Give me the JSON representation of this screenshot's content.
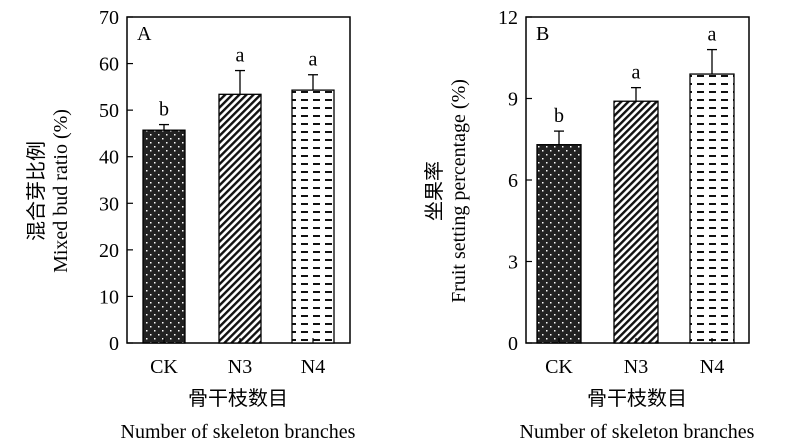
{
  "chart_data": [
    {
      "type": "bar",
      "panel_label": "A",
      "categories": [
        "CK",
        "N3",
        "N4"
      ],
      "values": [
        45.7,
        53.4,
        54.3
      ],
      "errors": [
        1.2,
        5.1,
        3.3
      ],
      "significance": [
        "b",
        "a",
        "a"
      ],
      "ylabel_cn": "混合芽比例",
      "ylabel_en": "Mixed bud ratio (%)",
      "xlabel_cn": "骨干枝数目",
      "xlabel_en": "Number of skeleton branches",
      "ylim": [
        0,
        70
      ],
      "yticks": [
        0,
        10,
        20,
        30,
        40,
        50,
        60,
        70
      ],
      "grid": false,
      "bar_fills": [
        "dotted-dark",
        "diagonal-hatch",
        "dashed-horizontal"
      ]
    },
    {
      "type": "bar",
      "panel_label": "B",
      "categories": [
        "CK",
        "N3",
        "N4"
      ],
      "values": [
        7.3,
        8.9,
        9.9
      ],
      "errors": [
        0.5,
        0.5,
        0.9
      ],
      "significance": [
        "b",
        "a",
        "a"
      ],
      "ylabel_cn": "坐果率",
      "ylabel_en": "Fruit setting percentage (%)",
      "xlabel_cn": "骨干枝数目",
      "xlabel_en": "Number of skeleton branches",
      "ylim": [
        0,
        12
      ],
      "yticks": [
        0,
        3,
        6,
        9,
        12
      ],
      "grid": false,
      "bar_fills": [
        "dotted-dark",
        "diagonal-hatch",
        "dashed-horizontal"
      ]
    }
  ]
}
